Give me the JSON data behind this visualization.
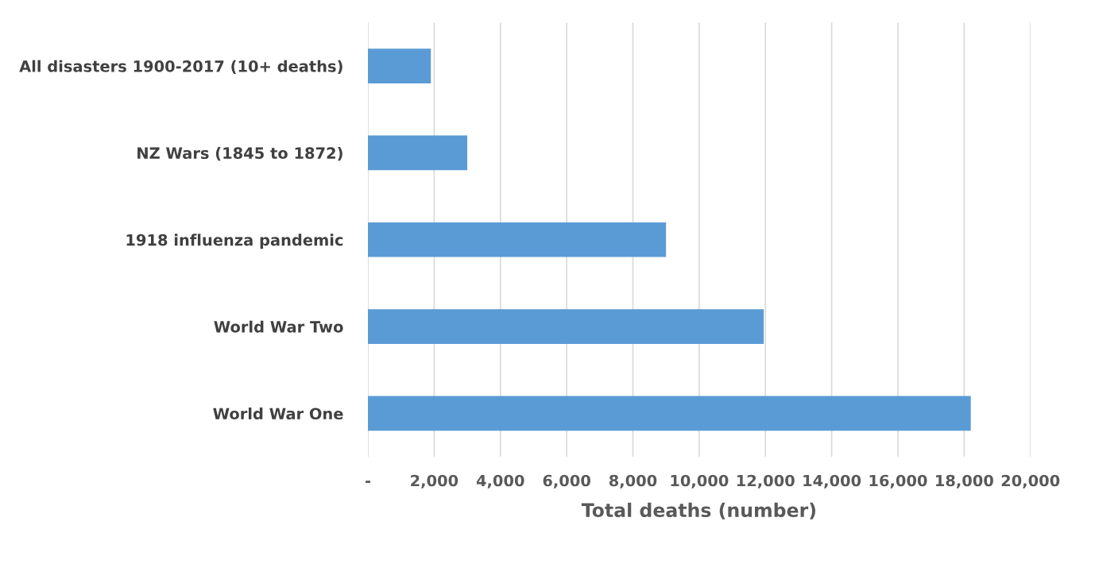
{
  "chart_data": {
    "type": "bar",
    "orientation": "horizontal",
    "xlabel": "Total deaths (number)",
    "categories": [
      "All disasters 1900-2017 (10+ deaths)",
      "NZ Wars (1845 to 1872)",
      "1918 influenza pandemic",
      "World War Two",
      "World War One"
    ],
    "values": [
      1900,
      3000,
      9000,
      11950,
      18200
    ],
    "color": "#5b9bd5",
    "xlim": [
      0,
      20000
    ],
    "xticks": [
      {
        "value": 0,
        "label": "-"
      },
      {
        "value": 2000,
        "label": "2,000"
      },
      {
        "value": 4000,
        "label": "4,000"
      },
      {
        "value": 6000,
        "label": "6,000"
      },
      {
        "value": 8000,
        "label": "8,000"
      },
      {
        "value": 10000,
        "label": "10,000"
      },
      {
        "value": 12000,
        "label": "12,000"
      },
      {
        "value": 14000,
        "label": "14,000"
      },
      {
        "value": 16000,
        "label": "16,000"
      },
      {
        "value": 18000,
        "label": "18,000"
      },
      {
        "value": 20000,
        "label": "20,000"
      }
    ],
    "grid": "x",
    "legend": false
  }
}
